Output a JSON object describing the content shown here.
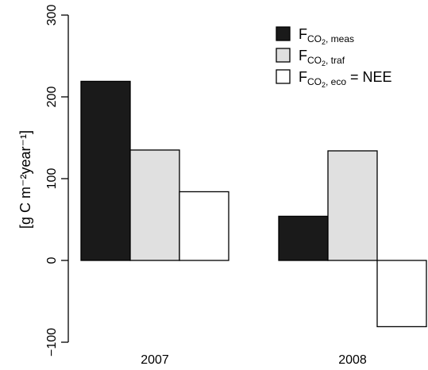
{
  "chart_data": {
    "type": "bar",
    "categories": [
      "2007",
      "2008"
    ],
    "series": [
      {
        "name": "F_CO2, meas",
        "color": "#1a1a1a",
        "values": [
          219,
          54
        ]
      },
      {
        "name": "F_CO2, traf",
        "color": "#e0e0e0",
        "values": [
          135,
          134
        ]
      },
      {
        "name": "F_CO2, eco = NEE",
        "color": "#ffffff",
        "values": [
          84,
          -81
        ]
      }
    ],
    "ylabel": "[g C m⁻²year⁻¹]",
    "ylim": [
      -100,
      300
    ],
    "yticks": [
      -100,
      0,
      100,
      200,
      300
    ],
    "grid": false,
    "legend_placement": "top-right"
  },
  "legend": [
    {
      "main": "F",
      "sub": "CO",
      "subsub": "2",
      "suffix": ", meas",
      "tail": ""
    },
    {
      "main": "F",
      "sub": "CO",
      "subsub": "2",
      "suffix": ", traf",
      "tail": ""
    },
    {
      "main": "F",
      "sub": "CO",
      "subsub": "2",
      "suffix": ", eco",
      "tail": " = NEE"
    }
  ]
}
